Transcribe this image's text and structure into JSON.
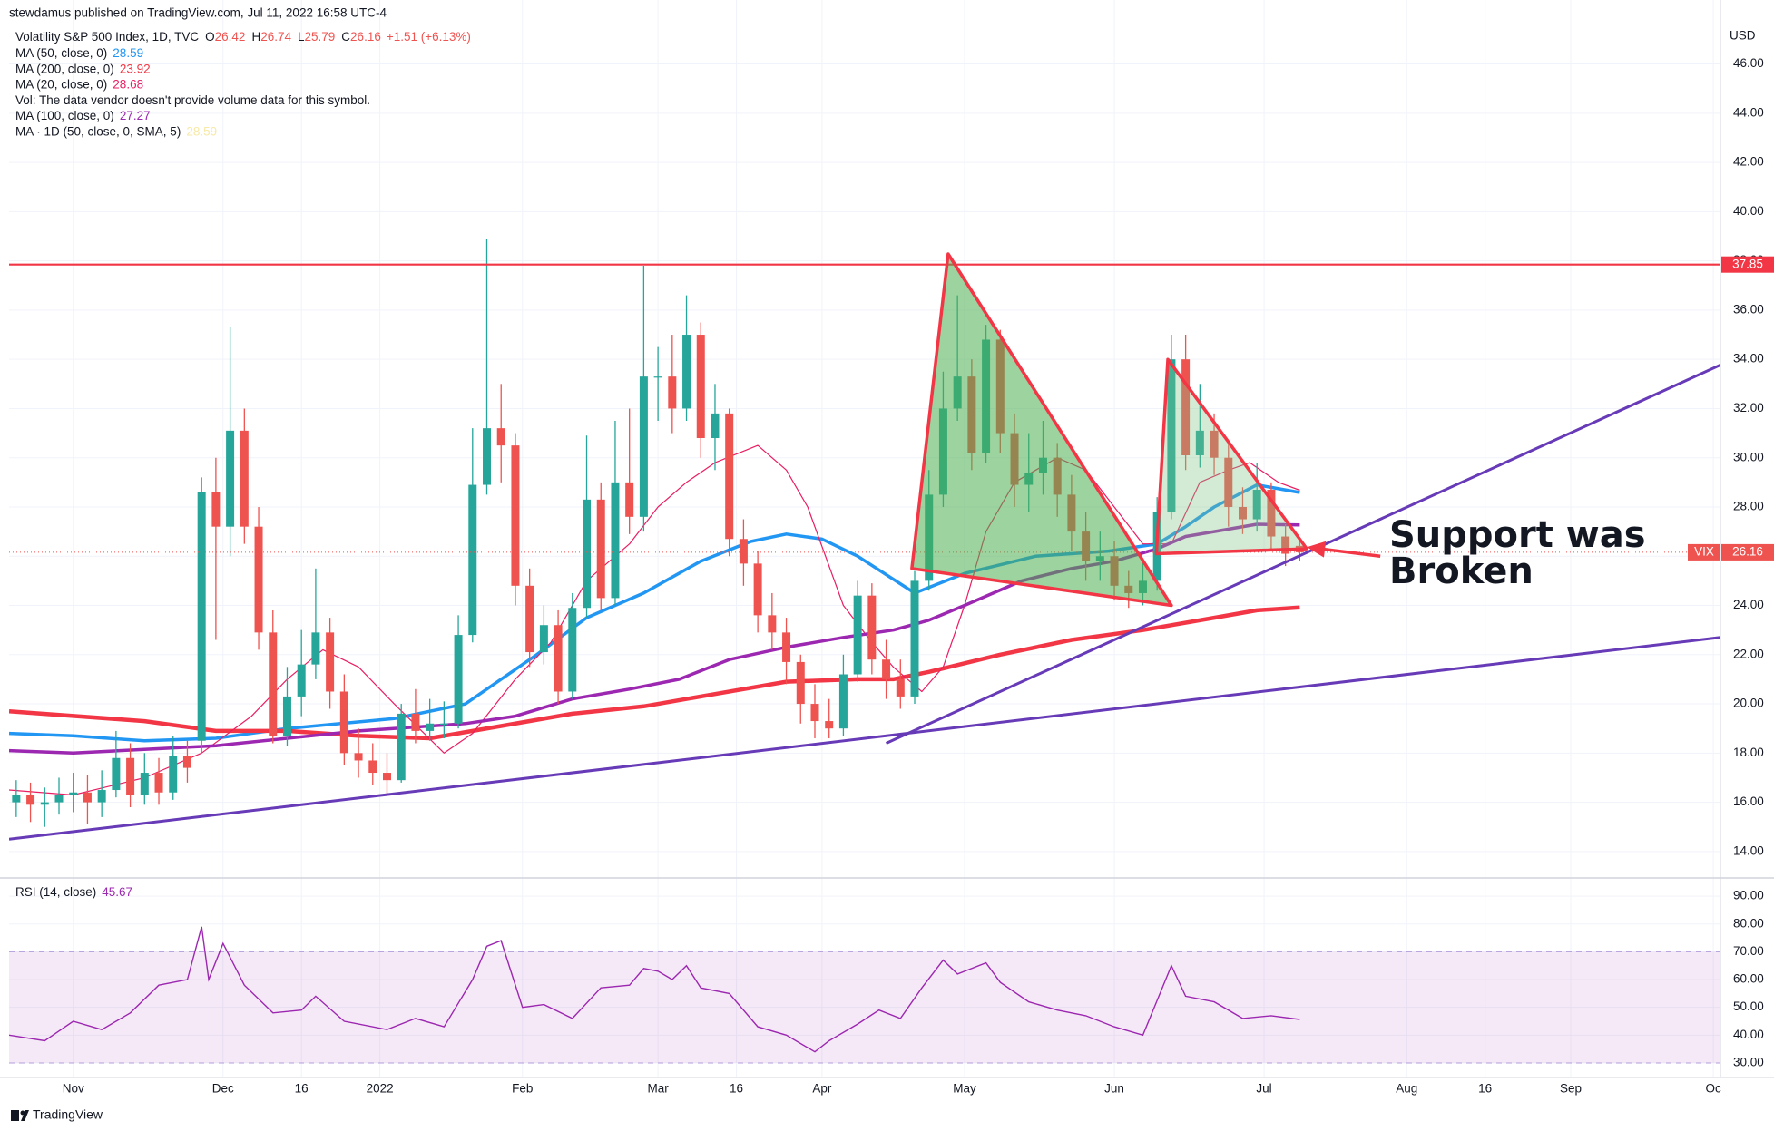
{
  "header": {
    "publisher": "stewdamus published on TradingView.com, Jul 11, 2022 16:58 UTC-4"
  },
  "chart_data": {
    "type": "candlestick",
    "title": "Volatility S&P 500 Index, 1D, TVC",
    "ohlc_letters": [
      "O",
      "H",
      "L",
      "C"
    ],
    "change": "+1.51 (+6.13%)",
    "currency": "USD",
    "symbol": "VIX",
    "up_color": "#26a69a",
    "down_color": "#ef5350",
    "grid": true,
    "candles": {
      "x": [
        -8,
        -6,
        -4,
        -2,
        0,
        2,
        4,
        6,
        8,
        10,
        12,
        14,
        16,
        18,
        20,
        22,
        24,
        26,
        28,
        30,
        32,
        34,
        36,
        38,
        40,
        42,
        44,
        46,
        48,
        50,
        52,
        54,
        56,
        58,
        60,
        62,
        64,
        66,
        68,
        70,
        72,
        74,
        76,
        78,
        80,
        82,
        84,
        86,
        88,
        90,
        92,
        94,
        96,
        98,
        100,
        102,
        104,
        106,
        108,
        110,
        112,
        114,
        116,
        118,
        120,
        122,
        124,
        126,
        128,
        130,
        132,
        134,
        136,
        138,
        140,
        142,
        144,
        146,
        148,
        150,
        152,
        154,
        156,
        158,
        160,
        162,
        164,
        166,
        168,
        170,
        172
      ],
      "open": [
        16.0,
        16.3,
        15.9,
        16.0,
        16.3,
        16.4,
        16.0,
        16.5,
        17.8,
        16.3,
        17.2,
        16.4,
        17.9,
        18.5,
        28.6,
        27.2,
        31.1,
        27.2,
        22.9,
        18.7,
        20.3,
        21.6,
        22.9,
        20.5,
        18.0,
        17.7,
        17.2,
        16.9,
        19.6,
        18.9,
        19.2,
        19.2,
        22.8,
        28.9,
        31.2,
        30.5,
        24.8,
        22.1,
        23.2,
        20.5,
        23.9,
        28.3,
        24.3,
        29.0,
        27.6,
        33.3,
        33.3,
        32.0,
        35.0,
        30.8,
        31.8,
        26.7,
        25.7,
        23.6,
        22.9,
        21.7,
        20.0,
        19.3,
        19.0,
        21.2,
        24.4,
        21.8,
        21.0,
        20.3,
        25.0,
        28.5,
        32.0,
        33.3,
        30.2,
        34.8,
        31.0,
        28.9,
        29.4,
        30.0,
        28.5,
        27.0,
        25.8,
        26.0,
        24.8,
        24.5,
        25.0,
        27.8,
        34.0,
        30.1,
        31.1,
        30.0,
        28.0,
        27.5,
        28.7,
        26.8,
        26.42
      ],
      "high": [
        16.9,
        16.8,
        16.6,
        17.0,
        17.2,
        17.1,
        17.3,
        18.9,
        18.4,
        18.0,
        17.8,
        18.7,
        18.5,
        29.2,
        30.0,
        35.3,
        32.0,
        28.0,
        23.8,
        21.5,
        23.0,
        25.5,
        23.5,
        21.2,
        19.0,
        18.4,
        18.0,
        20.0,
        20.6,
        20.2,
        20.1,
        23.6,
        31.2,
        38.9,
        33.0,
        31.0,
        25.5,
        24.0,
        23.8,
        24.5,
        30.9,
        29.0,
        31.5,
        32.0,
        37.8,
        34.5,
        35.0,
        36.6,
        35.5,
        33.0,
        32.0,
        27.5,
        26.2,
        24.5,
        23.5,
        22.0,
        20.8,
        20.2,
        22.0,
        25.0,
        24.9,
        22.6,
        21.8,
        25.4,
        29.5,
        33.5,
        36.6,
        34.0,
        35.4,
        35.2,
        31.8,
        31.0,
        31.5,
        30.6,
        29.3,
        27.8,
        27.0,
        26.6,
        25.4,
        25.8,
        28.4,
        35.0,
        35.0,
        33.0,
        31.8,
        30.6,
        28.8,
        29.8,
        29.0,
        27.3,
        26.74
      ],
      "low": [
        15.4,
        15.2,
        15.0,
        15.5,
        15.6,
        15.1,
        15.4,
        16.2,
        15.8,
        15.9,
        15.9,
        16.1,
        16.8,
        18.0,
        22.6,
        26.0,
        26.5,
        22.2,
        18.4,
        18.3,
        19.5,
        21.0,
        19.8,
        17.5,
        17.0,
        16.7,
        16.3,
        16.8,
        18.4,
        18.5,
        18.6,
        19.0,
        22.5,
        28.5,
        29.0,
        24.0,
        21.5,
        21.6,
        20.0,
        20.2,
        23.5,
        23.8,
        24.0,
        26.9,
        27.0,
        31.5,
        31.0,
        31.5,
        30.0,
        29.5,
        26.0,
        24.8,
        22.9,
        22.2,
        20.8,
        19.2,
        18.6,
        18.6,
        18.7,
        20.9,
        21.2,
        20.2,
        19.8,
        20.0,
        24.6,
        28.0,
        31.5,
        29.5,
        29.8,
        30.2,
        28.0,
        27.8,
        28.5,
        27.6,
        26.2,
        25.0,
        25.0,
        24.2,
        23.9,
        24.0,
        24.6,
        27.5,
        29.5,
        29.6,
        29.3,
        27.2,
        26.9,
        27.0,
        26.2,
        25.6,
        25.79
      ],
      "close": [
        16.3,
        15.9,
        16.0,
        16.3,
        16.4,
        16.0,
        16.5,
        17.8,
        16.3,
        17.2,
        16.4,
        17.9,
        17.4,
        28.6,
        27.2,
        31.1,
        27.2,
        22.9,
        18.7,
        20.3,
        21.6,
        22.9,
        20.5,
        18.0,
        17.7,
        17.2,
        16.9,
        19.6,
        18.9,
        19.2,
        19.2,
        22.8,
        28.9,
        31.2,
        30.5,
        24.8,
        22.1,
        23.2,
        20.5,
        23.9,
        28.3,
        24.3,
        29.0,
        27.6,
        33.3,
        33.3,
        32.0,
        35.0,
        30.8,
        31.8,
        26.7,
        25.7,
        23.6,
        22.9,
        21.7,
        20.0,
        19.3,
        19.0,
        21.2,
        24.4,
        21.8,
        21.0,
        20.3,
        25.0,
        28.5,
        32.0,
        33.3,
        30.2,
        34.8,
        31.0,
        28.9,
        29.4,
        30.0,
        28.5,
        27.0,
        25.8,
        26.0,
        24.8,
        24.5,
        25.0,
        27.8,
        34.0,
        30.1,
        31.1,
        30.0,
        28.0,
        27.5,
        28.7,
        26.8,
        26.1,
        26.16
      ]
    },
    "xlim": [
      -9,
      231
    ],
    "xticks": [
      {
        "value": 0,
        "label": "Nov"
      },
      {
        "value": 21,
        "label": "Dec"
      },
      {
        "value": 32,
        "label": "16"
      },
      {
        "value": 43,
        "label": "2022"
      },
      {
        "value": 63,
        "label": "Feb"
      },
      {
        "value": 82,
        "label": "Mar"
      },
      {
        "value": 93,
        "label": "16"
      },
      {
        "value": 105,
        "label": "Apr"
      },
      {
        "value": 125,
        "label": "May"
      },
      {
        "value": 146,
        "label": "Jun"
      },
      {
        "value": 167,
        "label": "Jul"
      },
      {
        "value": 187,
        "label": "Aug"
      },
      {
        "value": 198,
        "label": "16"
      },
      {
        "value": 210,
        "label": "Sep"
      },
      {
        "value": 230,
        "label": "Oc"
      }
    ],
    "ylim": [
      13.0,
      48.6
    ],
    "yticks": [
      {
        "value": 14,
        "label": "14.00"
      },
      {
        "value": 16,
        "label": "16.00"
      },
      {
        "value": 18,
        "label": "18.00"
      },
      {
        "value": 20,
        "label": "20.00"
      },
      {
        "value": 22,
        "label": "22.00"
      },
      {
        "value": 24,
        "label": "24.00"
      },
      {
        "value": 26,
        "label": "26.00"
      },
      {
        "value": 28,
        "label": "28.00"
      },
      {
        "value": 30,
        "label": "30.00"
      },
      {
        "value": 32,
        "label": "32.00"
      },
      {
        "value": 34,
        "label": "34.00"
      },
      {
        "value": 36,
        "label": "36.00"
      },
      {
        "value": 38,
        "label": "38.00"
      },
      {
        "value": 40,
        "label": "40.00"
      },
      {
        "value": 42,
        "label": "42.00"
      },
      {
        "value": 44,
        "label": "44.00"
      },
      {
        "value": 46,
        "label": "46.00"
      }
    ],
    "hline": {
      "value": 37.85,
      "color": "#f23645"
    },
    "overlays": [
      {
        "name": "MA (50, close, 0)",
        "color": "#2196f3",
        "width": 3.5,
        "x": [
          -9,
          0,
          10,
          20,
          30,
          45,
          55,
          65,
          72,
          80,
          88,
          95,
          100,
          105,
          110,
          118,
          125,
          135,
          145,
          152,
          156,
          160,
          166,
          172
        ],
        "values": [
          18.8,
          18.7,
          18.5,
          18.6,
          19.0,
          19.4,
          20.0,
          22.0,
          23.5,
          24.5,
          25.8,
          26.6,
          26.9,
          26.7,
          26.0,
          24.5,
          25.3,
          26.0,
          26.2,
          26.5,
          27.2,
          28.0,
          28.9,
          28.59
        ]
      },
      {
        "name": "MA (200, close, 0)",
        "color": "#f23645",
        "width": 4.5,
        "x": [
          -9,
          10,
          20,
          30,
          40,
          50,
          60,
          70,
          80,
          90,
          100,
          110,
          115,
          120,
          130,
          140,
          150,
          160,
          166,
          172
        ],
        "values": [
          19.7,
          19.3,
          18.9,
          18.9,
          18.7,
          18.6,
          19.1,
          19.6,
          19.9,
          20.4,
          20.9,
          21.0,
          21.0,
          21.3,
          22.0,
          22.6,
          23.0,
          23.5,
          23.8,
          23.92
        ]
      },
      {
        "name": "MA (20, close, 0)",
        "color": "#e91e63",
        "width": 1.2,
        "x": [
          -9,
          0,
          10,
          18,
          25,
          30,
          35,
          40,
          45,
          52,
          56,
          62,
          67,
          72,
          78,
          82,
          86,
          90,
          96,
          100,
          103,
          108,
          112,
          115,
          119,
          122,
          125,
          128,
          132,
          138,
          142,
          146,
          150,
          154,
          158,
          162,
          165,
          169,
          172
        ],
        "values": [
          16.5,
          16.3,
          17.0,
          18.0,
          19.5,
          21.0,
          22.2,
          21.5,
          20.0,
          18.0,
          18.8,
          21.0,
          22.5,
          25.0,
          26.5,
          28.0,
          29.0,
          29.8,
          30.5,
          29.5,
          28.0,
          24.0,
          22.5,
          21.5,
          20.5,
          21.5,
          24.0,
          27.0,
          29.0,
          30.0,
          29.5,
          28.0,
          26.5,
          26.5,
          29.0,
          29.5,
          29.8,
          29.0,
          28.68
        ]
      },
      {
        "name": "MA (100, close, 0)",
        "color": "#9c27b0",
        "width": 3.5,
        "x": [
          -9,
          0,
          20,
          40,
          55,
          62,
          70,
          78,
          85,
          92,
          100,
          108,
          115,
          120,
          125,
          133,
          140,
          146,
          152,
          156,
          160,
          166,
          172
        ],
        "values": [
          18.1,
          18.0,
          18.3,
          18.9,
          19.2,
          19.5,
          20.2,
          20.6,
          21.0,
          21.8,
          22.3,
          22.7,
          23.0,
          23.4,
          24.0,
          25.0,
          25.5,
          25.8,
          26.3,
          26.8,
          27.0,
          27.3,
          27.27
        ]
      }
    ],
    "volume_note": "Vol: The data vendor doesn't provide volume data for this symbol.",
    "ma_1d": {
      "name": "MA · 1D (50, close, 0, SMA, 5)",
      "value": 28.59,
      "color": "#f7e9a6"
    },
    "drawings": {
      "trendlines": [
        {
          "color": "#673ab7",
          "points": [
            [
              -9,
              14.5
            ],
            [
              231,
              22.7
            ]
          ]
        },
        {
          "color": "#673ab7",
          "points": [
            [
              114,
              18.4
            ],
            [
              231,
              33.77
            ]
          ]
        }
      ],
      "triangles": [
        {
          "fill": "rgba(76,175,80,0.55)",
          "stroke": "#f23645",
          "points": [
            [
              117.6,
              25.5
            ],
            [
              122.7,
              38.28
            ],
            [
              154,
              24.0
            ]
          ]
        },
        {
          "fill": "rgba(129,199,132,0.35)",
          "stroke": "#f23645",
          "points": [
            [
              151.9,
              26.1
            ],
            [
              153.5,
              34.0
            ],
            [
              173,
              26.3
            ]
          ]
        }
      ],
      "arrow": {
        "color": "#f23645",
        "from": [
          183.3,
          26.0
        ],
        "to": [
          173,
          26.37
        ]
      }
    },
    "annotation": [
      "Support was",
      "Broken"
    ],
    "rsi": {
      "name": "RSI (14, close)",
      "color": "#9c27b0",
      "band": [
        30,
        70
      ],
      "band_color": "rgba(156,39,176,0.1)",
      "ylim": [
        25.1,
        95.9
      ],
      "yticks": [
        {
          "value": 30,
          "label": "30.00"
        },
        {
          "value": 40,
          "label": "40.00"
        },
        {
          "value": 50,
          "label": "50.00"
        },
        {
          "value": 60,
          "label": "60.00"
        },
        {
          "value": 70,
          "label": "70.00"
        },
        {
          "value": 80,
          "label": "80.00"
        },
        {
          "value": 90,
          "label": "90.00"
        }
      ],
      "x": [
        -9,
        -4,
        0,
        4,
        8,
        12,
        16,
        18,
        19,
        21,
        24,
        28,
        32,
        34,
        38,
        44,
        48,
        52,
        56,
        58,
        60,
        63,
        66,
        70,
        74,
        78,
        80,
        82,
        84,
        86,
        88,
        92,
        96,
        100,
        104,
        106,
        110,
        113,
        116,
        119,
        122,
        124,
        128,
        130,
        134,
        138,
        142,
        146,
        150,
        154,
        156,
        160,
        164,
        168,
        172
      ],
      "values": [
        40,
        38,
        45,
        42,
        48,
        58,
        60,
        79,
        60,
        73,
        58,
        48,
        49,
        54,
        45,
        42,
        46,
        43,
        60,
        72,
        74,
        50,
        51,
        46,
        57,
        58,
        64,
        63,
        60,
        65,
        57,
        55,
        43,
        40,
        34,
        38,
        44,
        49,
        46,
        57,
        67,
        62,
        66,
        59,
        52,
        49,
        47,
        43,
        40,
        65,
        54,
        52,
        46,
        47,
        45.67
      ]
    }
  },
  "footer": {
    "brand": "TradingView"
  }
}
